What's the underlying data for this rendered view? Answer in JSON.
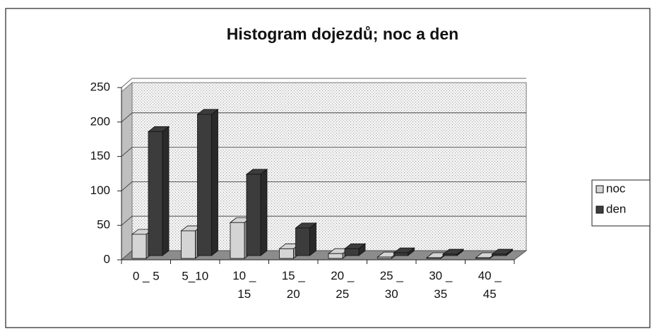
{
  "chart_data": {
    "type": "bar3d",
    "title": "Histogram dojezdů; noc a den",
    "categories": [
      "0 _ 5",
      "5_10",
      "10 _\n15",
      "15 _\n20",
      "20 _\n25",
      "25 _\n30",
      "30 _\n35",
      "40 _\n45"
    ],
    "series": [
      {
        "name": "noc",
        "color": "#d4d4d4",
        "values": [
          35,
          40,
          52,
          14,
          7,
          2,
          1,
          1
        ]
      },
      {
        "name": "den",
        "color": "#3c3c3c",
        "values": [
          180,
          205,
          118,
          40,
          10,
          4,
          2,
          2
        ]
      }
    ],
    "ylim": [
      0,
      250
    ],
    "yticks": [
      0,
      50,
      100,
      150,
      200,
      250
    ],
    "grid": true,
    "legend": "right"
  }
}
